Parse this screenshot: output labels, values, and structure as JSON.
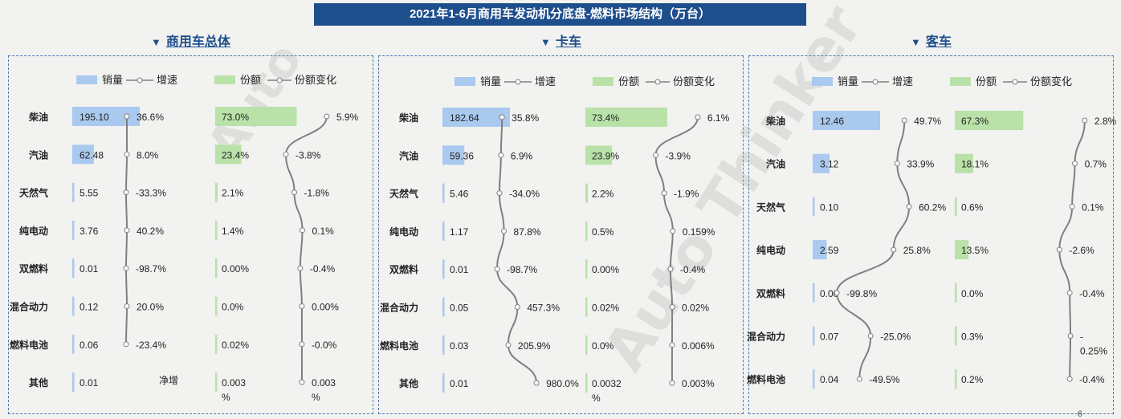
{
  "header": {
    "title": "2021年1-6月商用车发动机分底盘-燃料市场结构（万台）"
  },
  "panels": [
    {
      "title": "商用车总体"
    },
    {
      "title": "卡车"
    },
    {
      "title": "客车"
    }
  ],
  "legend": {
    "sales": "销量",
    "growth": "增速",
    "share": "份额",
    "share_change": "份额变化"
  },
  "colors": {
    "sales_bar": "#a9c9ee",
    "share_bar": "#b9e2a8",
    "line": "#7f7f7f",
    "title_bg": "#1f4e8c",
    "border": "#4a78b0"
  },
  "footer": {
    "page": "6"
  },
  "chart_data": [
    {
      "type": "bar",
      "panel": "商用车总体",
      "categories": [
        "柴油",
        "汽油",
        "天然气",
        "纯电动",
        "双燃料",
        "混合动力",
        "燃料电池",
        "其他"
      ],
      "series": [
        {
          "name": "销量",
          "values": [
            195.1,
            62.48,
            5.55,
            3.76,
            0.01,
            0.12,
            0.06,
            0.01
          ],
          "labels": [
            "195.10",
            "62.48",
            "5.55",
            "3.76",
            "0.01",
            "0.12",
            "0.06",
            "0.01"
          ]
        },
        {
          "name": "增速",
          "values": [
            36.6,
            8.0,
            -33.3,
            40.2,
            -98.7,
            20.0,
            -23.4,
            null
          ],
          "labels": [
            "36.6%",
            "8.0%",
            "-33.3%",
            "40.2%",
            "-98.7%",
            "20.0%",
            "-23.4%",
            "净增"
          ]
        },
        {
          "name": "份额",
          "values": [
            73.0,
            23.4,
            2.1,
            1.4,
            0.0,
            0.0,
            0.02,
            0.003
          ],
          "labels": [
            "73.0%",
            "23.4%",
            "2.1%",
            "1.4%",
            "0.00%",
            "0.0%",
            "0.02%",
            "0.003|%"
          ]
        },
        {
          "name": "份额变化",
          "values": [
            5.9,
            -3.8,
            -1.8,
            0.1,
            -0.4,
            0.0,
            -0.0,
            0.003
          ],
          "labels": [
            "5.9%",
            "-3.8%",
            "-1.8%",
            "0.1%",
            "-0.4%",
            "0.00%",
            "-0.0%",
            "0.003|%"
          ]
        }
      ]
    },
    {
      "type": "bar",
      "panel": "卡车",
      "categories": [
        "柴油",
        "汽油",
        "天然气",
        "纯电动",
        "双燃料",
        "混合动力",
        "燃料电池",
        "其他"
      ],
      "series": [
        {
          "name": "销量",
          "values": [
            182.64,
            59.36,
            5.46,
            1.17,
            0.01,
            0.05,
            0.03,
            0.01
          ],
          "labels": [
            "182.64",
            "59.36",
            "5.46",
            "1.17",
            "0.01",
            "0.05",
            "0.03",
            "0.01"
          ]
        },
        {
          "name": "增速",
          "values": [
            35.8,
            6.9,
            -34.0,
            87.8,
            -98.7,
            457.3,
            205.9,
            980.0
          ],
          "labels": [
            "35.8%",
            "6.9%",
            "-34.0%",
            "87.8%",
            "-98.7%",
            "457.3%",
            "205.9%",
            "980.0%"
          ]
        },
        {
          "name": "份额",
          "values": [
            73.4,
            23.9,
            2.2,
            0.5,
            0.0,
            0.02,
            0.0,
            0.0032
          ],
          "labels": [
            "73.4%",
            "23.9%",
            "2.2%",
            "0.5%",
            "0.00%",
            "0.02%",
            "0.0%",
            "0.0032|%"
          ]
        },
        {
          "name": "份额变化",
          "values": [
            6.1,
            -3.9,
            -1.9,
            0.159,
            -0.4,
            0.02,
            0.006,
            0.003
          ],
          "labels": [
            "6.1%",
            "-3.9%",
            "-1.9%",
            "0.159%",
            "-0.4%",
            "0.02%",
            "0.006%",
            "0.003%"
          ]
        }
      ]
    },
    {
      "type": "bar",
      "panel": "客车",
      "categories": [
        "柴油",
        "汽油",
        "天然气",
        "纯电动",
        "双燃料",
        "混合动力",
        "燃料电池"
      ],
      "series": [
        {
          "name": "销量",
          "values": [
            12.46,
            3.12,
            0.1,
            2.59,
            0.0,
            0.07,
            0.04
          ],
          "labels": [
            "12.46",
            "3.12",
            "0.10",
            "2.59",
            "0.00",
            "0.07",
            "0.04"
          ]
        },
        {
          "name": "增速",
          "values": [
            49.7,
            33.9,
            60.2,
            25.8,
            -99.8,
            -25.0,
            -49.5
          ],
          "labels": [
            "49.7%",
            "33.9%",
            "60.2%",
            "25.8%",
            "-99.8%",
            "-25.0%",
            "-49.5%"
          ]
        },
        {
          "name": "份额",
          "values": [
            67.3,
            18.1,
            0.6,
            13.5,
            0.0,
            0.3,
            0.2
          ],
          "labels": [
            "67.3%",
            "18.1%",
            "0.6%",
            "13.5%",
            "0.0%",
            "0.3%",
            "0.2%"
          ]
        },
        {
          "name": "份额变化",
          "values": [
            2.8,
            0.7,
            0.1,
            -2.6,
            -0.4,
            -0.25,
            -0.4
          ],
          "labels": [
            "2.8%",
            "0.7%",
            "0.1%",
            "-2.6%",
            "-0.4%",
            "-|0.25%",
            "-0.4%"
          ]
        }
      ]
    }
  ]
}
